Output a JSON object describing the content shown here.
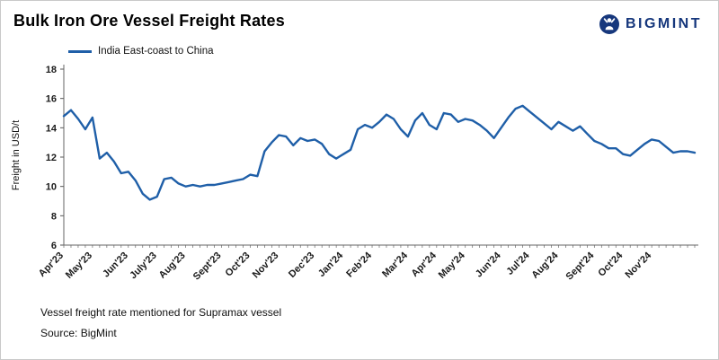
{
  "header": {
    "title": "Bulk Iron Ore Vessel Freight Rates",
    "brand": "BIGMINT"
  },
  "legend": {
    "label": "India East-coast to China"
  },
  "footnotes": {
    "note": "Vessel freight rate mentioned for Supramax vessel",
    "source": "Source:  BigMint"
  },
  "chart_data": {
    "type": "line",
    "title": "Bulk Iron Ore Vessel Freight Rates",
    "xlabel": "",
    "ylabel": "Freight  in USD/t",
    "ylim": [
      6,
      18
    ],
    "ytick_step": 2,
    "grid": false,
    "legend_position": "top-left",
    "categories": [
      "Apr'23",
      "May'23",
      "Jun'23",
      "July'23",
      "Aug'23",
      "Sept'23",
      "Oct'23",
      "Nov'23",
      "Dec'23",
      "Jan'24",
      "Feb'24",
      "Mar'24",
      "Apr'24",
      "May'24",
      "Jun'24",
      "Jul'24",
      "Aug'24",
      "Sept'24",
      "Oct'24",
      "Nov'24"
    ],
    "category_start_indices": [
      0,
      4,
      9,
      13,
      17,
      22,
      26,
      30,
      35,
      39,
      43,
      48,
      52,
      56,
      61,
      65,
      69,
      74,
      78,
      82
    ],
    "series": [
      {
        "name": "India East-coast to China",
        "color": "#1f5fa8",
        "values": [
          14.8,
          15.2,
          14.6,
          13.9,
          14.7,
          11.9,
          12.3,
          11.7,
          10.9,
          11.0,
          10.4,
          9.5,
          9.1,
          9.3,
          10.5,
          10.6,
          10.2,
          10.0,
          10.1,
          10.0,
          10.1,
          10.1,
          10.2,
          10.3,
          10.4,
          10.5,
          10.8,
          10.7,
          12.4,
          13.0,
          13.5,
          13.4,
          12.8,
          13.3,
          13.1,
          13.2,
          12.9,
          12.2,
          11.9,
          12.2,
          12.5,
          13.9,
          14.2,
          14.0,
          14.4,
          14.9,
          14.6,
          13.9,
          13.4,
          14.5,
          15.0,
          14.2,
          13.9,
          15.0,
          14.9,
          14.4,
          14.6,
          14.5,
          14.2,
          13.8,
          13.3,
          14.0,
          14.7,
          15.3,
          15.5,
          15.1,
          14.7,
          14.3,
          13.9,
          14.4,
          14.1,
          13.8,
          14.1,
          13.6,
          13.1,
          12.9,
          12.6,
          12.6,
          12.2,
          12.1,
          12.5,
          12.9,
          13.2,
          13.1,
          12.7,
          12.3,
          12.4,
          12.4,
          12.3
        ]
      }
    ]
  }
}
